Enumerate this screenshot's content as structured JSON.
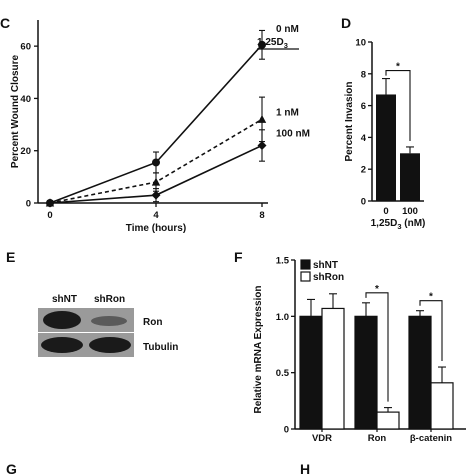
{
  "panels": {
    "c": "C",
    "d": "D",
    "e": "E",
    "f": "F",
    "g": "G",
    "h": "H"
  },
  "chart_data": [
    {
      "id": "C",
      "type": "line",
      "x": [
        0,
        4,
        8
      ],
      "xticks": [
        "0",
        "4",
        "8"
      ],
      "xlabel": "Time (hours)",
      "ylabel": "Percent Wound Closure",
      "ylim": [
        0,
        70
      ],
      "yticks": [
        0,
        20,
        40,
        60
      ],
      "legend_title": "1,25D",
      "legend_title_sub": "3",
      "series": [
        {
          "name": "0 nM",
          "marker": "circle",
          "dash": "solid",
          "values": [
            0,
            15.5,
            60.5
          ],
          "errors": [
            0.8,
            4,
            5.5
          ]
        },
        {
          "name": "1 nM",
          "marker": "triangle",
          "dash": "dashed",
          "values": [
            0,
            8,
            32
          ],
          "errors": [
            0.8,
            3.5,
            8.5
          ]
        },
        {
          "name": "100 nM",
          "marker": "diamond",
          "dash": "solid",
          "values": [
            0,
            3,
            22
          ],
          "errors": [
            0.8,
            2.5,
            6
          ]
        }
      ]
    },
    {
      "id": "D",
      "type": "bar",
      "categories": [
        "0",
        "100"
      ],
      "values": [
        6.7,
        3.0
      ],
      "errors": [
        1.0,
        0.4
      ],
      "fills": [
        "#111111",
        "#111111"
      ],
      "ylabel": "Percent Invasion",
      "ylim": [
        0,
        10
      ],
      "yticks": [
        0,
        2,
        4,
        6,
        8,
        10
      ],
      "xlabel_pre": "1,25D",
      "xlabel_sub": "3",
      "xlabel_post": " (nM)",
      "significance": "*"
    },
    {
      "id": "F",
      "type": "bar",
      "categories": [
        "VDR",
        "Ron",
        "β-catenin"
      ],
      "series": [
        {
          "name": "shNT",
          "fill": "#111111",
          "values": [
            1.0,
            1.0,
            1.0
          ],
          "errors": [
            0.15,
            0.12,
            0.05
          ]
        },
        {
          "name": "shRon",
          "fill": "#ffffff",
          "values": [
            1.07,
            0.15,
            0.41
          ],
          "errors": [
            0.13,
            0.04,
            0.14
          ]
        }
      ],
      "ylabel": "Relative mRNA Expression",
      "ylim": [
        0,
        1.5
      ],
      "yticks": [
        "0",
        "0.5",
        "1.0",
        "1.5"
      ],
      "significance": [
        "*",
        "*"
      ],
      "legend_position": "top-left"
    }
  ],
  "blot": {
    "lanes": [
      "shNT",
      "shRon"
    ],
    "rows": [
      "Ron",
      "Tubulin"
    ]
  },
  "colors": {
    "ink": "#111111",
    "paper": "#ffffff",
    "blot_bg": "#9a9a9a",
    "band": "#1a1a1a"
  }
}
